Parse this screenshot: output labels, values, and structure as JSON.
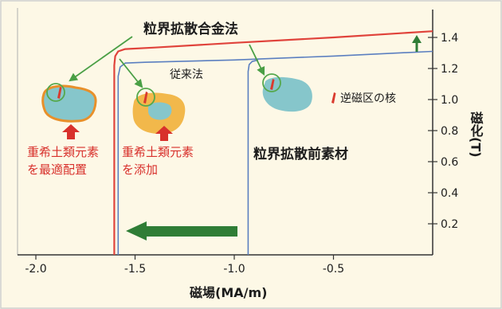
{
  "chart_data": {
    "type": "line",
    "xlabel": "磁場(MA/m)",
    "ylabel": "磁化(T)",
    "xlim": [
      -2.1,
      0.0
    ],
    "ylim": [
      0.0,
      1.59
    ],
    "grid": false,
    "x_ticks": [
      {
        "value": -2.0,
        "label": "-2.0"
      },
      {
        "value": -1.5,
        "label": "-1.5"
      },
      {
        "value": -1.0,
        "label": "-1.0"
      },
      {
        "value": -0.5,
        "label": "-0.5"
      }
    ],
    "y_ticks": [
      {
        "value": 0.2,
        "label": "0.2"
      },
      {
        "value": 0.4,
        "label": "0.4"
      },
      {
        "value": 0.6,
        "label": "0.6"
      },
      {
        "value": 0.8,
        "label": "0.8"
      },
      {
        "value": 1.0,
        "label": "1.0"
      },
      {
        "value": 1.2,
        "label": "1.2"
      },
      {
        "value": 1.4,
        "label": "1.4"
      }
    ],
    "series": [
      {
        "name": "粒界拡散合金法",
        "color": "#e0433b",
        "points": [
          [
            -1.605,
            0.0
          ],
          [
            -1.605,
            1.22
          ],
          [
            -1.6,
            1.28
          ],
          [
            -1.585,
            1.31
          ],
          [
            -1.55,
            1.325
          ],
          [
            -1.4,
            1.335
          ],
          [
            -1.0,
            1.365
          ],
          [
            -0.5,
            1.4
          ],
          [
            0.0,
            1.44
          ]
        ]
      },
      {
        "name": "従来法",
        "color": "#5b7fc0",
        "points": [
          [
            -1.585,
            0.0
          ],
          [
            -1.585,
            1.15
          ],
          [
            -1.575,
            1.21
          ],
          [
            -1.55,
            1.235
          ],
          [
            -1.45,
            1.24
          ],
          [
            -1.0,
            1.255
          ],
          [
            -0.5,
            1.28
          ],
          [
            0.0,
            1.31
          ]
        ]
      },
      {
        "name": "粒界拡散前素材",
        "color": "#5b7fc0",
        "points": [
          [
            -0.93,
            0.0
          ],
          [
            -0.93,
            1.18
          ],
          [
            -0.925,
            1.225
          ],
          [
            -0.91,
            1.245
          ],
          [
            -0.88,
            1.255
          ]
        ]
      }
    ]
  },
  "annotations": {
    "left_grain_line1": "重希土類元素",
    "left_grain_line2": "を最適配置",
    "mid_grain_line1": "重希土類元素",
    "mid_grain_line2": "を添加",
    "nucleus_legend": "逆磁区の核"
  },
  "colors": {
    "grain_core": "#86c6cb",
    "grain_shell": "#f2b84b",
    "grain_outline": "#e8902a",
    "nucleus": "#d93a2e",
    "arrow_green": "#2f7d36",
    "pointer_green": "#4a9f45",
    "text_red": "#d8312c"
  }
}
